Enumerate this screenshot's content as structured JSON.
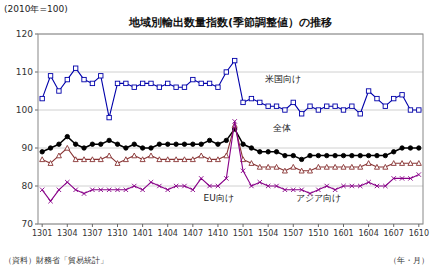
{
  "chart_data": {
    "type": "line",
    "title": "地域別輸出数量指数(季節調整値）の推移",
    "subtitle": "(2010年=100)",
    "source": "（資料）財務省「貿易統計」",
    "x_label": "（年・月）",
    "categories": [
      "1301",
      null,
      null,
      "1304",
      null,
      null,
      "1307",
      null,
      null,
      "1310",
      null,
      null,
      "1401",
      null,
      null,
      "1404",
      null,
      null,
      "1407",
      null,
      null,
      "1410",
      null,
      null,
      "1501",
      null,
      null,
      "1504",
      null,
      null,
      "1507",
      null,
      null,
      "1510",
      null,
      null,
      "1601",
      null,
      null,
      "1604",
      null,
      null,
      "1607",
      null,
      null,
      "1610"
    ],
    "ylim": [
      70,
      120
    ],
    "yticks": [
      70,
      80,
      90,
      100,
      110,
      120
    ],
    "grid": true,
    "series": [
      {
        "name": "米国向け",
        "color": "#0000aa",
        "marker": "square",
        "values": [
          103,
          109,
          105,
          108,
          111,
          108,
          107,
          109,
          98,
          107,
          107,
          106,
          107,
          107,
          106,
          107,
          106,
          106,
          108,
          107,
          107,
          106,
          110,
          113,
          102,
          103,
          102,
          101,
          101,
          100,
          102,
          99,
          101,
          100,
          101,
          101,
          100,
          101,
          99,
          105,
          103,
          101,
          103,
          104,
          100,
          100
        ]
      },
      {
        "name": "全体",
        "color": "#000000",
        "marker": "circle",
        "values": [
          89,
          90,
          91,
          93,
          91,
          90,
          91,
          91,
          92,
          91,
          90,
          91,
          90,
          90,
          91,
          91,
          91,
          91,
          91,
          91,
          92,
          91,
          92,
          95,
          91,
          90,
          89,
          89,
          89,
          88,
          88,
          87,
          88,
          88,
          88,
          88,
          88,
          88,
          88,
          88,
          88,
          88,
          89,
          90,
          90,
          90
        ]
      },
      {
        "name": "EU向け",
        "color": "#883333",
        "marker": "triangle",
        "values": [
          87,
          86,
          88,
          90,
          87,
          87,
          87,
          87,
          88,
          86,
          87,
          88,
          87,
          88,
          87,
          87,
          87,
          87,
          87,
          88,
          87,
          87,
          88,
          96,
          87,
          86,
          85,
          85,
          85,
          84,
          85,
          84,
          84,
          85,
          85,
          85,
          85,
          85,
          85,
          86,
          85,
          85,
          86,
          86,
          86,
          86
        ]
      },
      {
        "name": "アジア向け",
        "color": "#880088",
        "marker": "x",
        "values": [
          79,
          76,
          79,
          81,
          79,
          78,
          79,
          79,
          79,
          79,
          79,
          80,
          79,
          81,
          80,
          79,
          80,
          80,
          79,
          82,
          80,
          80,
          82,
          97,
          84,
          80,
          81,
          80,
          80,
          79,
          79,
          79,
          78,
          79,
          80,
          79,
          80,
          80,
          80,
          81,
          80,
          80,
          82,
          82,
          82,
          83
        ]
      }
    ]
  }
}
